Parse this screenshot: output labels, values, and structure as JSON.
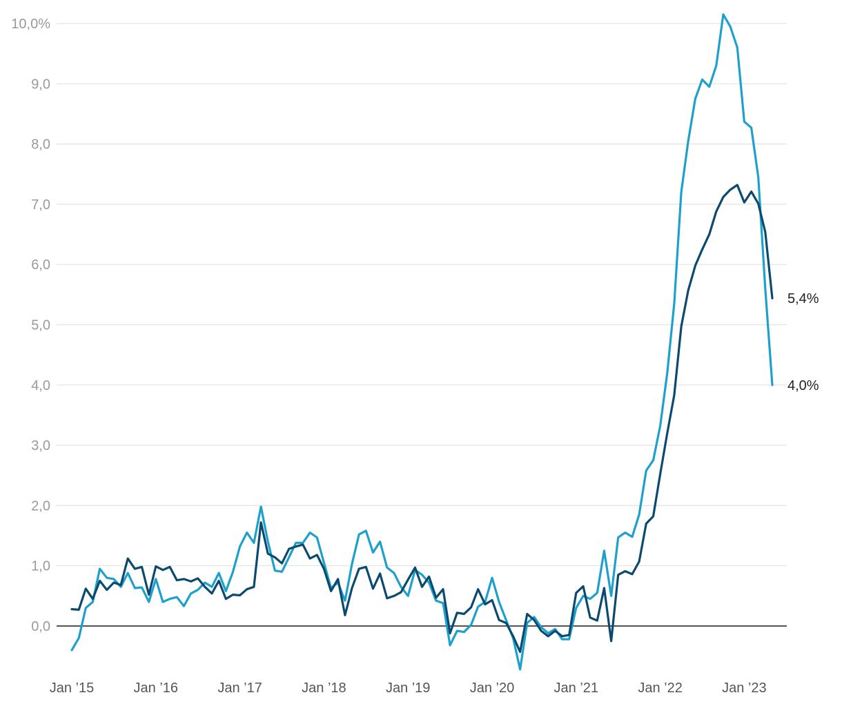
{
  "chart_data": {
    "type": "line",
    "title": "",
    "xlabel": "",
    "ylabel": "",
    "ylim": [
      -0.7,
      10.2
    ],
    "grid": true,
    "legend": "none",
    "y_ticks": [
      0,
      1,
      2,
      3,
      4,
      5,
      6,
      7,
      8,
      9,
      10
    ],
    "y_tick_labels": [
      "0,0",
      "1,0",
      "2,0",
      "3,0",
      "4,0",
      "5,0",
      "6,0",
      "7,0",
      "8,0",
      "9,0",
      "10,0%"
    ],
    "x_ticks": [
      "2015-01",
      "2016-01",
      "2017-01",
      "2018-01",
      "2019-01",
      "2020-01",
      "2021-01",
      "2022-01",
      "2023-01"
    ],
    "x_tick_labels": [
      "Jan ’15",
      "Jan ’16",
      "Jan ’17",
      "Jan ’18",
      "Jan ’19",
      "Jan ’20",
      "Jan ’21",
      "Jan ’22",
      "Jan ’23"
    ],
    "x_start": "2015-01",
    "series": [
      {
        "color": "#1ea0cc",
        "end_label": "4,0%",
        "values": [
          -0.4,
          -0.2,
          0.3,
          0.4,
          0.95,
          0.8,
          0.78,
          0.65,
          0.88,
          0.63,
          0.64,
          0.4,
          0.78,
          0.4,
          0.45,
          0.48,
          0.33,
          0.54,
          0.6,
          0.72,
          0.65,
          0.88,
          0.58,
          0.9,
          1.32,
          1.55,
          1.38,
          1.98,
          1.4,
          0.92,
          0.9,
          1.14,
          1.38,
          1.38,
          1.55,
          1.47,
          1.05,
          0.63,
          0.72,
          0.42,
          1.03,
          1.52,
          1.58,
          1.22,
          1.4,
          0.97,
          0.88,
          0.65,
          0.5,
          0.93,
          0.85,
          0.72,
          0.42,
          0.38,
          -0.32,
          -0.08,
          -0.1,
          0.02,
          0.32,
          0.4,
          0.8,
          0.4,
          0.1,
          -0.2,
          -0.72,
          0.05,
          0.15,
          -0.02,
          -0.12,
          -0.05,
          -0.22,
          -0.22,
          0.3,
          0.5,
          0.45,
          0.55,
          1.25,
          0.5,
          1.47,
          1.55,
          1.48,
          1.85,
          2.58,
          2.75,
          3.32,
          4.2,
          5.35,
          7.2,
          8.05,
          8.75,
          9.07,
          8.95,
          9.3,
          10.15,
          9.95,
          9.6,
          8.37,
          8.27,
          7.45,
          5.6,
          4.0
        ]
      },
      {
        "color": "#0b4a6e",
        "end_label": "5,4%",
        "values": [
          0.28,
          0.27,
          0.62,
          0.45,
          0.75,
          0.6,
          0.72,
          0.68,
          1.12,
          0.95,
          0.98,
          0.52,
          0.99,
          0.93,
          0.98,
          0.76,
          0.78,
          0.74,
          0.79,
          0.65,
          0.54,
          0.75,
          0.45,
          0.52,
          0.51,
          0.61,
          0.65,
          1.72,
          1.2,
          1.14,
          1.04,
          1.28,
          1.32,
          1.35,
          1.12,
          1.18,
          0.95,
          0.58,
          0.78,
          0.18,
          0.63,
          0.95,
          0.98,
          0.62,
          0.87,
          0.46,
          0.5,
          0.56,
          0.77,
          0.97,
          0.65,
          0.82,
          0.47,
          0.61,
          -0.12,
          0.22,
          0.2,
          0.31,
          0.61,
          0.36,
          0.43,
          0.1,
          0.05,
          -0.17,
          -0.43,
          0.2,
          0.1,
          -0.08,
          -0.17,
          -0.08,
          -0.17,
          -0.15,
          0.55,
          0.66,
          0.14,
          0.09,
          0.63,
          -0.25,
          0.85,
          0.91,
          0.86,
          1.07,
          1.7,
          1.82,
          2.52,
          3.2,
          3.83,
          4.97,
          5.57,
          5.98,
          6.25,
          6.5,
          6.88,
          7.12,
          7.24,
          7.32,
          7.03,
          7.21,
          7.01,
          6.54,
          5.44
        ]
      }
    ]
  }
}
